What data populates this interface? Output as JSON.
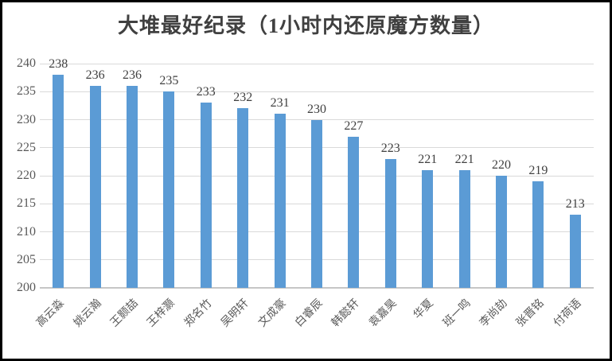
{
  "window": {
    "background": "#ffffff",
    "border_color": "#000000"
  },
  "chart_data": {
    "type": "bar",
    "title": "大堆最好纪录（1小时内还原魔方数量）",
    "xlabel": "",
    "ylabel": "",
    "categories": [
      "高云淼",
      "姚云瀚",
      "王颢喆",
      "王梓灏",
      "郑名竹",
      "吴明轩",
      "文成豪",
      "白睿辰",
      "韩懿轩",
      "袁嘉昊",
      "华夏",
      "班一鸣",
      "李尚劼",
      "张晋铭",
      "付荷语"
    ],
    "values": [
      238,
      236,
      236,
      235,
      233,
      232,
      231,
      230,
      227,
      223,
      221,
      221,
      220,
      219,
      213
    ],
    "ylim": [
      200,
      240
    ],
    "yticks": [
      200,
      205,
      210,
      215,
      220,
      225,
      230,
      235,
      240
    ],
    "grid": true,
    "legend": false,
    "data_labels": true,
    "colors": {
      "bar": "#5b9bd5",
      "gridline": "#d9d9d9",
      "axis_line": "#c6c6c6",
      "tick_label": "#595959",
      "category_label": "#595959",
      "data_label": "#404040",
      "title": "#404040"
    }
  }
}
